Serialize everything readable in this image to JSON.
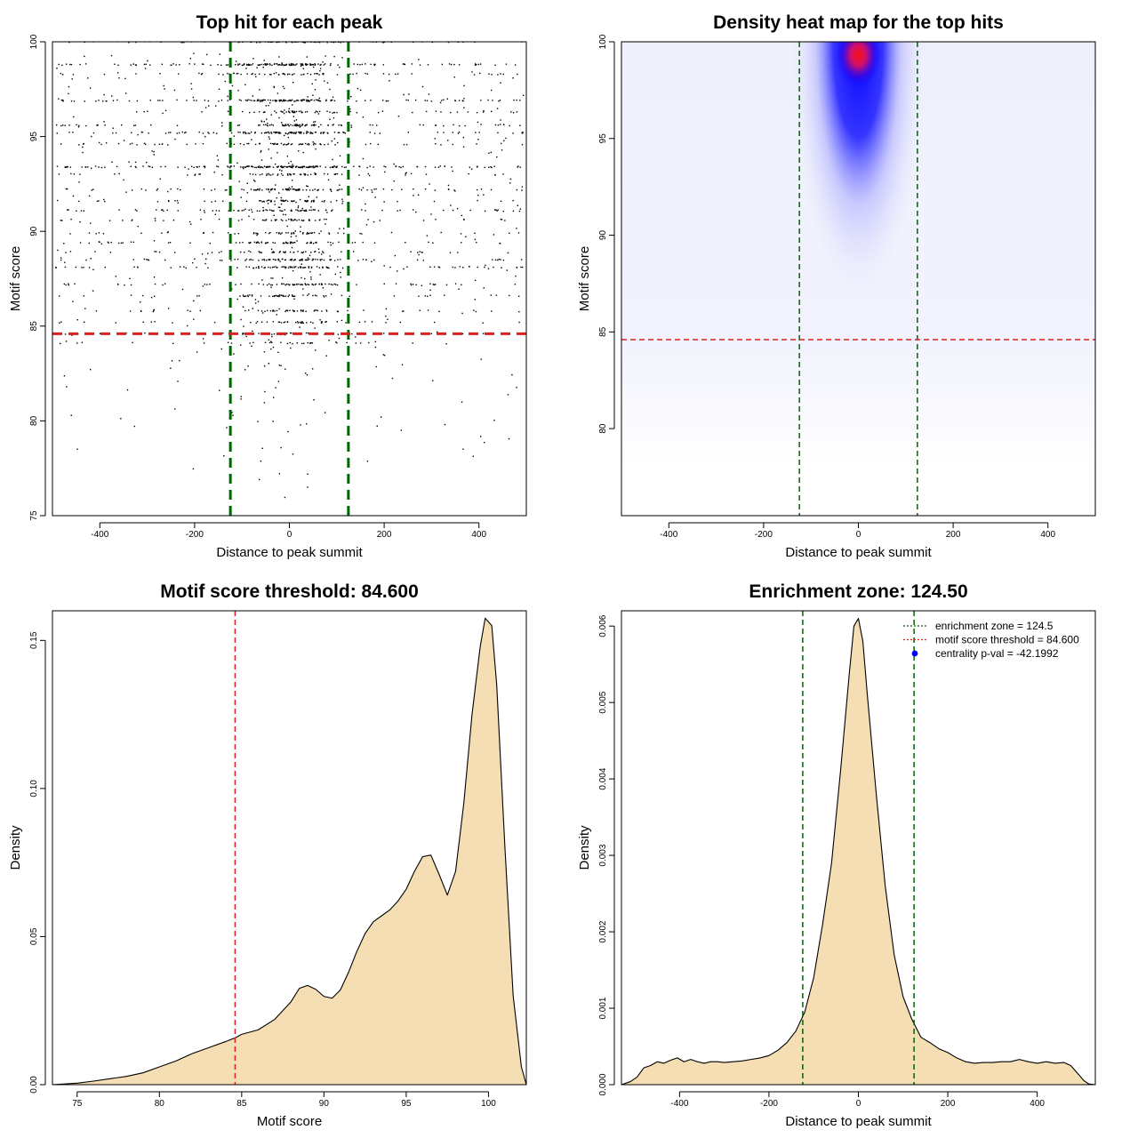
{
  "colors": {
    "wheat_fill": "#f5deb3",
    "threshold_red": "#e02020",
    "zone_green": "#006400",
    "heat_low": "#ffffff",
    "heat_mid": "#0000ff",
    "heat_high": "#ff0000",
    "centrality_point": "#0000ff"
  },
  "chart_data": [
    {
      "type": "scatter",
      "title": "Top hit for each peak",
      "xlabel": "Distance to peak summit",
      "ylabel": "Motif score",
      "xlim": [
        -500,
        500
      ],
      "ylim": [
        75,
        100
      ],
      "xticks": [
        "-400",
        "-200",
        "0",
        "200",
        "400"
      ],
      "yticks": [
        "75",
        "80",
        "85",
        "90",
        "95",
        "100"
      ],
      "vlines": [
        -124.5,
        124.5
      ],
      "hline": 84.6,
      "score_levels": [
        100,
        98.8,
        98.3,
        96.9,
        96.3,
        95.6,
        95.2,
        94.6,
        93.4,
        93.0,
        92.2,
        91.6,
        91.1,
        90.6,
        89.9,
        89.4,
        88.9,
        88.5,
        88.1,
        87.2,
        86.6,
        85.8,
        85.2,
        84.6,
        84.1
      ],
      "level_counts": [
        150,
        150,
        70,
        140,
        60,
        90,
        120,
        70,
        180,
        60,
        100,
        60,
        80,
        55,
        55,
        75,
        50,
        90,
        90,
        80,
        60,
        55,
        45,
        40,
        30
      ],
      "sparse_points": 600
    },
    {
      "type": "heatmap",
      "title": "Density heat map for the top hits",
      "xlabel": "Distance to peak summit",
      "ylabel": "Motif score",
      "xlim": [
        -500,
        500
      ],
      "ylim": [
        75.5,
        100
      ],
      "xticks": [
        "-400",
        "-200",
        "0",
        "200",
        "400"
      ],
      "yticks": [
        "80",
        "85",
        "90",
        "95",
        "100"
      ],
      "vlines": [
        -124.5,
        124.5
      ],
      "hline": 84.6,
      "hotspot": {
        "x": 0,
        "y": 99.5
      }
    },
    {
      "type": "area",
      "title": "Motif score threshold: 84.600",
      "xlabel": "Motif score",
      "ylabel": "Density",
      "xlim": [
        73.5,
        102.3
      ],
      "ylim": [
        0,
        0.16
      ],
      "xticks": [
        "75",
        "80",
        "85",
        "90",
        "95",
        "100"
      ],
      "yticks": [
        "0.00",
        "0.05",
        "0.10",
        "0.15"
      ],
      "vline": 84.6,
      "x": [
        73.5,
        75,
        76,
        77,
        78,
        79,
        80,
        81,
        82,
        83,
        84,
        84.6,
        85,
        86,
        87,
        88,
        88.5,
        89,
        89.5,
        90,
        90.5,
        91,
        91.5,
        92,
        92.5,
        93,
        93.5,
        94,
        94.5,
        95,
        95.5,
        96,
        96.5,
        97,
        97.5,
        98,
        98.5,
        99,
        99.5,
        99.8,
        100.2,
        100.5,
        101,
        101.5,
        102,
        102.3
      ],
      "y": [
        0.0,
        0.0005,
        0.0012,
        0.002,
        0.0028,
        0.004,
        0.006,
        0.008,
        0.0105,
        0.0125,
        0.0145,
        0.0158,
        0.017,
        0.0185,
        0.022,
        0.028,
        0.0325,
        0.0335,
        0.0322,
        0.0298,
        0.0292,
        0.032,
        0.038,
        0.045,
        0.051,
        0.055,
        0.057,
        0.059,
        0.062,
        0.066,
        0.072,
        0.077,
        0.0775,
        0.071,
        0.064,
        0.072,
        0.095,
        0.125,
        0.148,
        0.1575,
        0.155,
        0.135,
        0.08,
        0.03,
        0.006,
        0.0
      ]
    },
    {
      "type": "area",
      "title": "Enrichment zone: 124.50",
      "xlabel": "Distance to peak summit",
      "ylabel": "Density",
      "xlim": [
        -530,
        530
      ],
      "ylim": [
        0,
        0.0062
      ],
      "xticks": [
        "-400",
        "-200",
        "0",
        "200",
        "400"
      ],
      "yticks": [
        "0.000",
        "0.001",
        "0.002",
        "0.003",
        "0.004",
        "0.005",
        "0.006"
      ],
      "vlines": [
        -124.5,
        124.5
      ],
      "x": [
        -530,
        -510,
        -495,
        -480,
        -465,
        -450,
        -435,
        -420,
        -405,
        -390,
        -375,
        -360,
        -345,
        -330,
        -315,
        -300,
        -280,
        -260,
        -240,
        -220,
        -200,
        -180,
        -160,
        -140,
        -120,
        -100,
        -80,
        -60,
        -40,
        -20,
        -10,
        0,
        10,
        20,
        40,
        60,
        80,
        100,
        120,
        140,
        160,
        180,
        200,
        220,
        240,
        260,
        280,
        300,
        320,
        340,
        360,
        380,
        400,
        420,
        440,
        460,
        475,
        490,
        505,
        515,
        530
      ],
      "y": [
        0,
        4e-05,
        0.0001,
        0.00022,
        0.00025,
        0.0003,
        0.00028,
        0.00032,
        0.00035,
        0.0003,
        0.00033,
        0.0003,
        0.00028,
        0.0003,
        0.0003,
        0.00029,
        0.0003,
        0.00031,
        0.00033,
        0.00035,
        0.00038,
        0.00045,
        0.00055,
        0.0007,
        0.00095,
        0.0014,
        0.0021,
        0.0029,
        0.0041,
        0.0054,
        0.006,
        0.0061,
        0.0058,
        0.0051,
        0.0038,
        0.0026,
        0.0017,
        0.00115,
        0.00085,
        0.00062,
        0.00055,
        0.00047,
        0.00042,
        0.00035,
        0.0003,
        0.00028,
        0.00029,
        0.00029,
        0.0003,
        0.0003,
        0.00033,
        0.0003,
        0.00028,
        0.0003,
        0.00028,
        0.00029,
        0.00025,
        0.00015,
        5e-05,
        1e-05,
        0
      ],
      "legend": [
        {
          "label": "enrichment zone = 124.5",
          "kind": "dotted-line",
          "color": "#006400"
        },
        {
          "label": "motif score threshold = 84.600",
          "kind": "dotted-line",
          "color": "#e02020"
        },
        {
          "label": "centrality p-val = -42.1992",
          "kind": "point",
          "color": "#0000ff"
        }
      ]
    }
  ]
}
